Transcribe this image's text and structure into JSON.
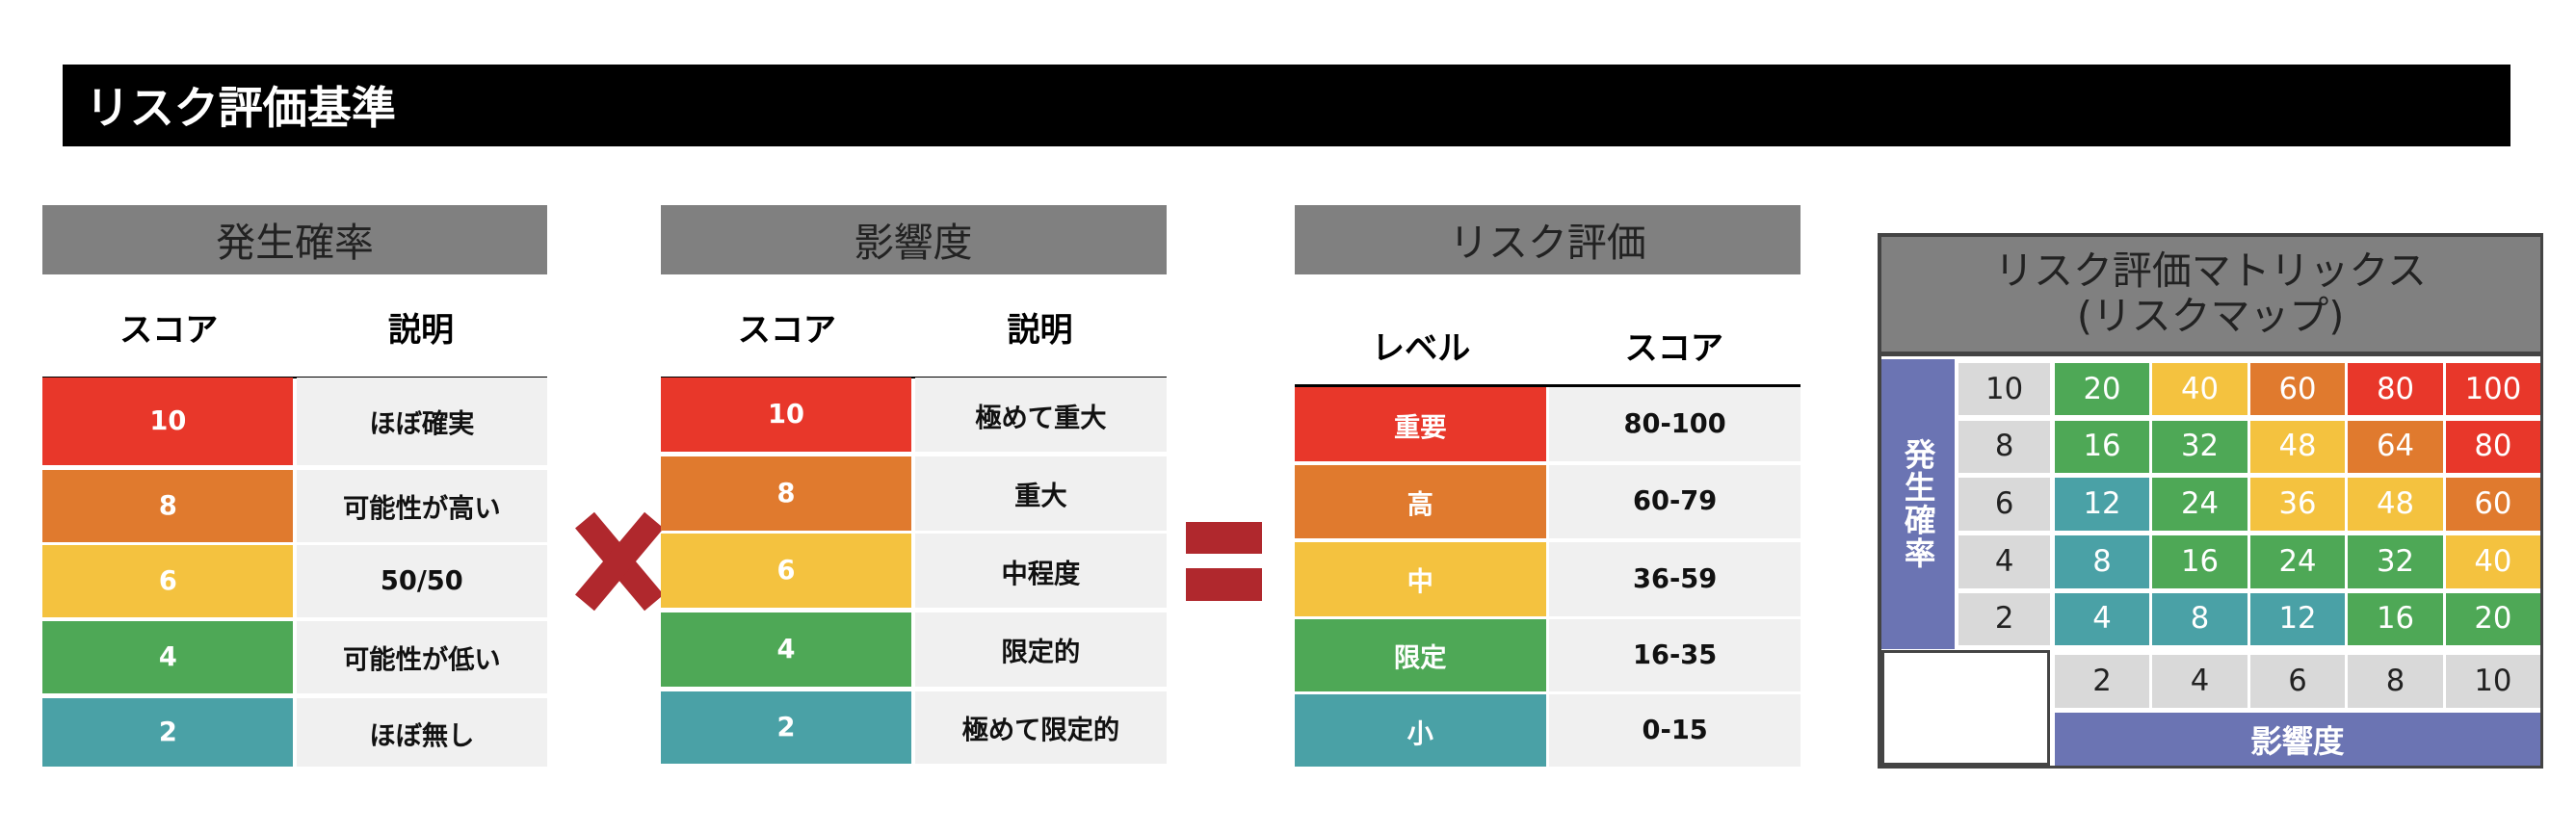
{
  "header": {
    "title": "リスク評価基準"
  },
  "probability_table": {
    "title": "発生確率",
    "columns": [
      "スコア",
      "説明"
    ],
    "rows": [
      {
        "score": 10,
        "description": "ほぼ確実",
        "color": "#e8372a"
      },
      {
        "score": 8,
        "description": "可能性が高い",
        "color": "#e07a2e"
      },
      {
        "score": 6,
        "description": "50/50",
        "color": "#f4c23f"
      },
      {
        "score": 4,
        "description": "可能性が低い",
        "color": "#4ea856"
      },
      {
        "score": 2,
        "description": "ほぼ無し",
        "color": "#4aa1a6"
      }
    ]
  },
  "impact_table": {
    "title": "影響度",
    "columns": [
      "スコア",
      "説明"
    ],
    "rows": [
      {
        "score": 10,
        "description": "極めて重大",
        "color": "#e8372a"
      },
      {
        "score": 8,
        "description": "重大",
        "color": "#e07a2e"
      },
      {
        "score": 6,
        "description": "中程度",
        "color": "#f4c23f"
      },
      {
        "score": 4,
        "description": "限定的",
        "color": "#4ea856"
      },
      {
        "score": 2,
        "description": "極めて限定的",
        "color": "#4aa1a6"
      }
    ]
  },
  "risk_table": {
    "title": "リスク評価",
    "columns": [
      "レベル",
      "スコア"
    ],
    "rows": [
      {
        "level": "重要",
        "score": "80-100",
        "color": "#e8372a"
      },
      {
        "level": "高",
        "score": "60-79",
        "color": "#e07a2e"
      },
      {
        "level": "中",
        "score": "36-59",
        "color": "#f4c23f"
      },
      {
        "level": "限定",
        "score": "16-35",
        "color": "#4ea856"
      },
      {
        "level": "小",
        "score": "0-15",
        "color": "#4aa1a6"
      }
    ]
  },
  "matrix": {
    "title_lines": [
      "リスク評価マトリックス",
      "(リスクマップ)"
    ],
    "y_label": "発生確率",
    "x_label": "影響度",
    "y_values": [
      10,
      8,
      6,
      4,
      2
    ],
    "x_values": [
      2,
      4,
      6,
      8,
      10
    ],
    "cells": [
      [
        20,
        40,
        60,
        80,
        100
      ],
      [
        16,
        32,
        48,
        64,
        80
      ],
      [
        12,
        24,
        36,
        48,
        60
      ],
      [
        8,
        16,
        24,
        32,
        40
      ],
      [
        4,
        8,
        12,
        16,
        20
      ]
    ],
    "cell_colors": [
      [
        "#4ea856",
        "#f4c23f",
        "#e07a2e",
        "#e8372a",
        "#e8372a"
      ],
      [
        "#4ea856",
        "#4ea856",
        "#f4c23f",
        "#e07a2e",
        "#e8372a"
      ],
      [
        "#4aa1a6",
        "#4ea856",
        "#f4c23f",
        "#f4c23f",
        "#e07a2e"
      ],
      [
        "#4aa1a6",
        "#4ea856",
        "#4ea856",
        "#4ea856",
        "#f4c23f"
      ],
      [
        "#4aa1a6",
        "#4aa1a6",
        "#4aa1a6",
        "#4ea856",
        "#4ea856"
      ]
    ]
  }
}
